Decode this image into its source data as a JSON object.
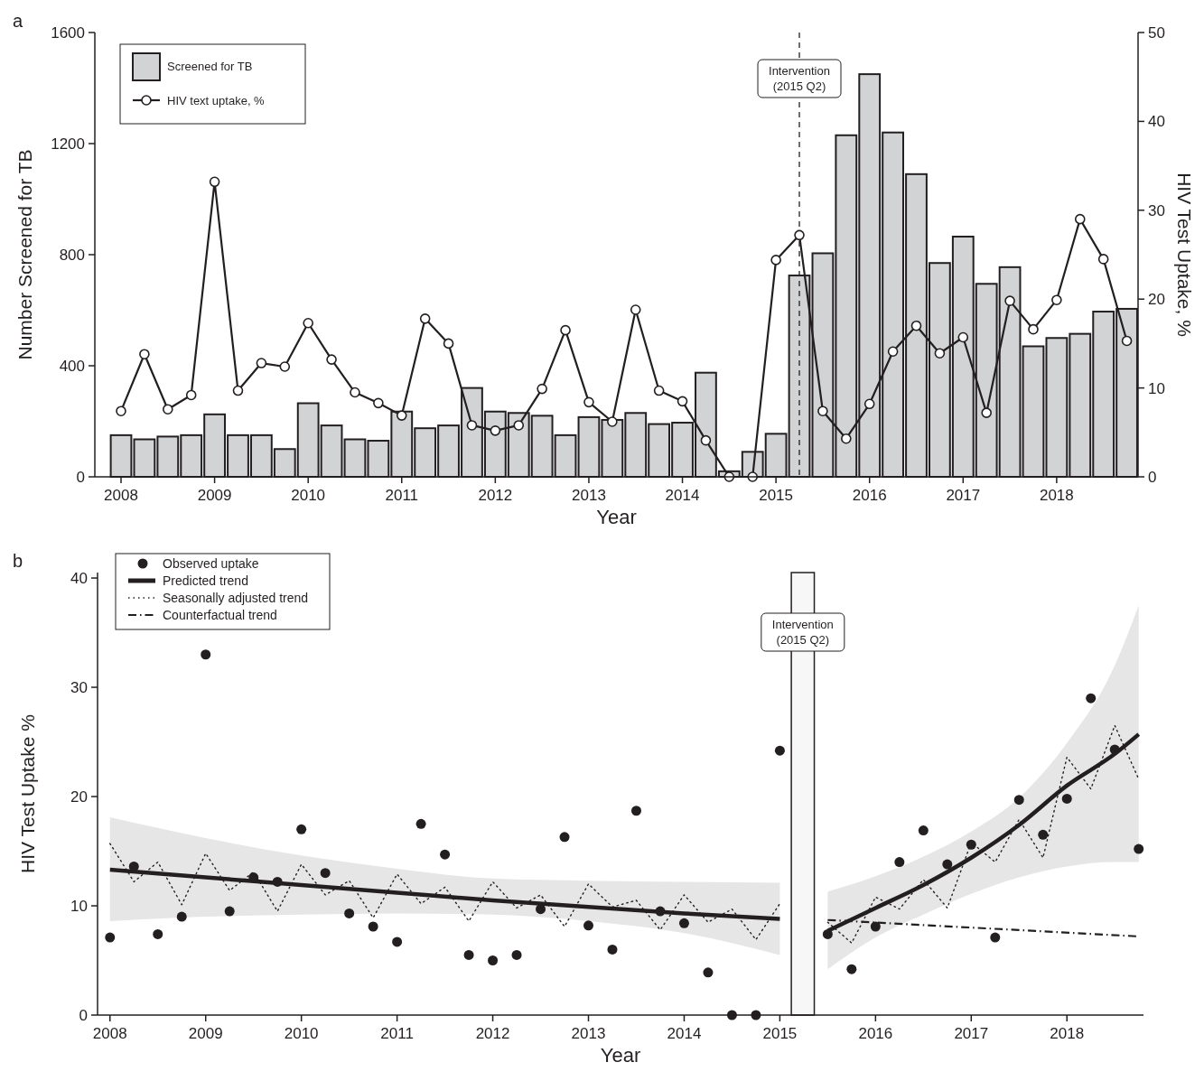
{
  "chart_data": [
    {
      "type": "bar",
      "annotations": [
        "a"
      ],
      "xlabel": "Year",
      "ylabel": "Number Screened for TB",
      "y2label": "HIV Test Uptake, %",
      "x": [
        2008,
        2008.25,
        2008.5,
        2008.75,
        2009,
        2009.25,
        2009.5,
        2009.75,
        2010,
        2010.25,
        2010.5,
        2010.75,
        2011,
        2011.25,
        2011.5,
        2011.75,
        2012,
        2012.25,
        2012.5,
        2012.75,
        2013,
        2013.25,
        2013.5,
        2013.75,
        2014,
        2014.25,
        2014.5,
        2014.75,
        2015,
        2015.25,
        2015.5,
        2015.75,
        2016,
        2016.25,
        2016.5,
        2016.75,
        2017,
        2017.25,
        2017.5,
        2017.75,
        2018,
        2018.25,
        2018.5,
        2018.75
      ],
      "xlim": [
        2007.72,
        2018.87
      ],
      "xticks": [
        2008,
        2009,
        2010,
        2011,
        2012,
        2013,
        2014,
        2015,
        2016,
        2017,
        2018
      ],
      "ylim": [
        0,
        1600
      ],
      "yticks": [
        0,
        400,
        800,
        1200,
        1600
      ],
      "y2lim": [
        0,
        50
      ],
      "y2ticks": [
        0,
        10,
        20,
        30,
        40,
        50
      ],
      "legend": "top left",
      "ref_lines": [
        {
          "axis": "x",
          "value": 2015.25,
          "label": "Intervention\n(2015 Q2)",
          "line_style": "dashed"
        }
      ],
      "series": [
        {
          "name": "Screened for TB",
          "color": "#d1d3d4",
          "values": [
            150,
            135,
            145,
            150,
            225,
            150,
            150,
            100,
            265,
            185,
            135,
            130,
            235,
            175,
            185,
            320,
            235,
            230,
            220,
            150,
            215,
            205,
            230,
            190,
            195,
            375,
            20,
            90,
            155,
            725,
            805,
            1230,
            1450,
            1240,
            1090,
            770,
            865,
            695,
            755,
            470,
            500,
            515,
            595,
            605
          ]
        },
        {
          "name": "HIV text uptake, %",
          "type": "line",
          "axis": "y2",
          "color": "#231f20",
          "marker": "circle",
          "values": [
            7.4,
            13.8,
            7.6,
            9.2,
            33.2,
            9.7,
            12.8,
            12.4,
            17.3,
            13.2,
            9.5,
            8.3,
            6.9,
            17.8,
            15.0,
            5.8,
            5.2,
            5.8,
            9.9,
            16.5,
            8.4,
            6.2,
            18.8,
            9.7,
            8.5,
            4.1,
            0,
            0,
            24.4,
            27.2,
            7.4,
            4.3,
            8.2,
            14.1,
            17.0,
            13.9,
            15.7,
            7.2,
            19.8,
            16.6,
            19.9,
            29.0,
            24.5,
            15.3
          ]
        }
      ]
    },
    {
      "type": "line",
      "annotations": [
        "b"
      ],
      "xlabel": "Year",
      "ylabel": "HIV Test Uptake %",
      "xlim": [
        2007.87,
        2018.8
      ],
      "xticks": [
        2008,
        2009,
        2010,
        2011,
        2012,
        2013,
        2014,
        2015,
        2016,
        2017,
        2018
      ],
      "ylim": [
        0,
        40.5
      ],
      "yticks": [
        0,
        10,
        20,
        30,
        40
      ],
      "legend": "top left",
      "bands": [
        {
          "axis": "x",
          "from": 2015.12,
          "to": 2015.36,
          "label": "Intervention\n(2015 Q2)",
          "color": "#f7f7f7"
        }
      ],
      "series": [
        {
          "name": "Observed uptake",
          "type": "scatter",
          "marker": "circle",
          "color": "#231f20",
          "x": [
            2008,
            2008.25,
            2008.5,
            2008.75,
            2009,
            2009.25,
            2009.5,
            2009.75,
            2010,
            2010.25,
            2010.5,
            2010.75,
            2011,
            2011.25,
            2011.5,
            2011.75,
            2012,
            2012.25,
            2012.5,
            2012.75,
            2013,
            2013.25,
            2013.5,
            2013.75,
            2014,
            2014.25,
            2014.5,
            2014.75,
            2015,
            2015.5,
            2015.75,
            2016,
            2016.25,
            2016.5,
            2016.75,
            2017,
            2017.25,
            2017.5,
            2017.75,
            2018,
            2018.25,
            2018.5,
            2018.75
          ],
          "values": [
            7.1,
            13.6,
            7.4,
            9.0,
            33.0,
            9.5,
            12.6,
            12.2,
            17.0,
            13.0,
            9.3,
            8.1,
            6.7,
            17.5,
            14.7,
            5.5,
            5.0,
            5.5,
            9.7,
            16.3,
            8.2,
            6.0,
            18.7,
            9.5,
            8.4,
            3.9,
            0,
            0,
            24.2,
            7.4,
            4.2,
            8.1,
            14.0,
            16.9,
            13.8,
            15.6,
            7.1,
            19.7,
            16.5,
            19.8,
            29.0,
            24.3,
            15.2
          ]
        },
        {
          "name": "Predicted trend",
          "color": "#231f20",
          "line_style": "solid",
          "x": [
            2008,
            2009,
            2010,
            2011,
            2012,
            2013,
            2014,
            2015,
            2015.25,
            2015.5,
            2016,
            2016.5,
            2017,
            2017.5,
            2018,
            2018.5,
            2018.75
          ],
          "values": [
            13.3,
            12.6,
            11.9,
            11.2,
            10.5,
            9.9,
            9.3,
            8.8,
            null,
            7.7,
            9.8,
            11.9,
            14.4,
            17.4,
            21.0,
            23.9,
            25.7
          ],
          "lower": [
            8.6,
            9.0,
            9.2,
            9.3,
            9.2,
            8.6,
            7.5,
            5.5,
            null,
            4.2,
            7.1,
            9.2,
            11.1,
            12.6,
            13.6,
            14.0,
            14.0
          ],
          "upper": [
            18.1,
            16.2,
            14.6,
            13.4,
            12.5,
            12.3,
            12.2,
            12.1,
            null,
            11.3,
            12.7,
            14.5,
            16.8,
            19.9,
            24.9,
            32.0,
            37.5
          ]
        },
        {
          "name": "Seasonally adjusted trend",
          "color": "#231f20",
          "line_style": "dotted",
          "x": [
            2008,
            2008.25,
            2008.5,
            2008.75,
            2009,
            2009.25,
            2009.5,
            2009.75,
            2010,
            2010.25,
            2010.5,
            2010.75,
            2011,
            2011.25,
            2011.5,
            2011.75,
            2012,
            2012.25,
            2012.5,
            2012.75,
            2013,
            2013.25,
            2013.5,
            2013.75,
            2014,
            2014.25,
            2014.5,
            2014.75,
            2015,
            2015.25,
            2015.5,
            2015.75,
            2016,
            2016.25,
            2016.5,
            2016.75,
            2017,
            2017.25,
            2017.5,
            2017.75,
            2018,
            2018.25,
            2018.5,
            2018.75
          ],
          "values": [
            15.7,
            12.2,
            14.0,
            10.1,
            14.8,
            11.4,
            13.1,
            9.5,
            13.8,
            11.0,
            12.3,
            8.9,
            12.9,
            10.2,
            11.7,
            8.6,
            12.2,
            9.8,
            11.0,
            8.1,
            12.0,
            9.9,
            10.5,
            7.8,
            11.0,
            8.5,
            9.7,
            6.9,
            10.2,
            null,
            8.5,
            6.6,
            10.8,
            9.7,
            12.4,
            9.8,
            15.8,
            14.0,
            17.9,
            14.4,
            23.6,
            20.7,
            26.5,
            21.6
          ]
        },
        {
          "name": "Counterfactual trend",
          "color": "#231f20",
          "line_style": "dashdot",
          "x": [
            2015.5,
            2018.75
          ],
          "values": [
            8.7,
            7.2
          ]
        }
      ]
    }
  ]
}
